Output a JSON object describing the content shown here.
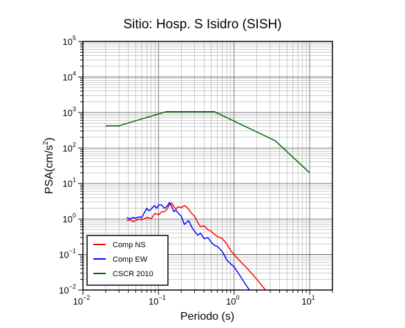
{
  "chart_data": {
    "type": "line",
    "title": "Sitio: Hosp. S Isidro (SISH)",
    "xlabel": "Periodo (s)",
    "ylabel_base": "PSA(cm/s",
    "ylabel_sup": "2",
    "ylabel_close": ")",
    "xscale": "log",
    "yscale": "log",
    "xlim": [
      0.01,
      20
    ],
    "ylim": [
      0.01,
      100000
    ],
    "grid": true,
    "x_ticks": [
      {
        "base": "10",
        "exp": "−2",
        "value": 0.01
      },
      {
        "base": "10",
        "exp": "−1",
        "value": 0.1
      },
      {
        "base": "10",
        "exp": "0",
        "value": 1
      },
      {
        "base": "10",
        "exp": "1",
        "value": 10
      }
    ],
    "y_ticks": [
      {
        "base": "10",
        "exp": "−2",
        "value": 0.01
      },
      {
        "base": "10",
        "exp": "−1",
        "value": 0.1
      },
      {
        "base": "10",
        "exp": "0",
        "value": 1
      },
      {
        "base": "10",
        "exp": "1",
        "value": 10
      },
      {
        "base": "10",
        "exp": "2",
        "value": 100
      },
      {
        "base": "10",
        "exp": "3",
        "value": 1000
      },
      {
        "base": "10",
        "exp": "4",
        "value": 10000
      },
      {
        "base": "10",
        "exp": "5",
        "value": 100000
      }
    ],
    "legend_position": "bottom-left",
    "series": [
      {
        "name": "Comp NS",
        "color": "#ff0000",
        "x": [
          0.038,
          0.042,
          0.046,
          0.05,
          0.055,
          0.06,
          0.066,
          0.072,
          0.08,
          0.088,
          0.095,
          0.1,
          0.11,
          0.12,
          0.13,
          0.14,
          0.15,
          0.16,
          0.17,
          0.18,
          0.2,
          0.22,
          0.24,
          0.27,
          0.3,
          0.33,
          0.36,
          0.4,
          0.45,
          0.5,
          0.55,
          0.6,
          0.7,
          0.8,
          0.9,
          1.0,
          1.2,
          1.5,
          2.0,
          2.6
        ],
        "y": [
          0.9,
          0.95,
          0.85,
          0.9,
          1.0,
          0.95,
          1.05,
          1.1,
          1.0,
          1.4,
          1.4,
          1.3,
          1.6,
          1.6,
          1.9,
          2.6,
          2.8,
          2.2,
          1.9,
          2.2,
          2.1,
          2.4,
          2.1,
          1.5,
          1.2,
          0.8,
          0.6,
          0.65,
          0.5,
          0.45,
          0.37,
          0.32,
          0.28,
          0.2,
          0.13,
          0.1,
          0.065,
          0.04,
          0.02,
          0.01
        ]
      },
      {
        "name": "Comp EW",
        "color": "#0000ff",
        "x": [
          0.038,
          0.042,
          0.046,
          0.05,
          0.055,
          0.06,
          0.066,
          0.07,
          0.075,
          0.08,
          0.088,
          0.095,
          0.1,
          0.11,
          0.12,
          0.13,
          0.14,
          0.15,
          0.16,
          0.17,
          0.18,
          0.2,
          0.22,
          0.25,
          0.28,
          0.3,
          0.33,
          0.36,
          0.4,
          0.45,
          0.5,
          0.55,
          0.6,
          0.7,
          0.8,
          0.9,
          1.0,
          1.2,
          1.4,
          1.6
        ],
        "y": [
          1.1,
          1.0,
          1.1,
          1.05,
          1.15,
          1.1,
          1.6,
          2.0,
          1.7,
          1.9,
          2.4,
          2.0,
          2.5,
          2.5,
          2.0,
          2.3,
          2.9,
          2.2,
          1.6,
          1.8,
          1.5,
          1.2,
          0.7,
          0.9,
          0.55,
          0.45,
          0.35,
          0.4,
          0.28,
          0.3,
          0.22,
          0.18,
          0.17,
          0.12,
          0.07,
          0.055,
          0.045,
          0.025,
          0.015,
          0.01
        ]
      },
      {
        "name": "CSCR 2010",
        "color": "#006400",
        "x": [
          0.02,
          0.03,
          0.125,
          0.55,
          3.5,
          10
        ],
        "y": [
          420,
          420,
          1050,
          1050,
          160,
          20
        ]
      }
    ]
  }
}
